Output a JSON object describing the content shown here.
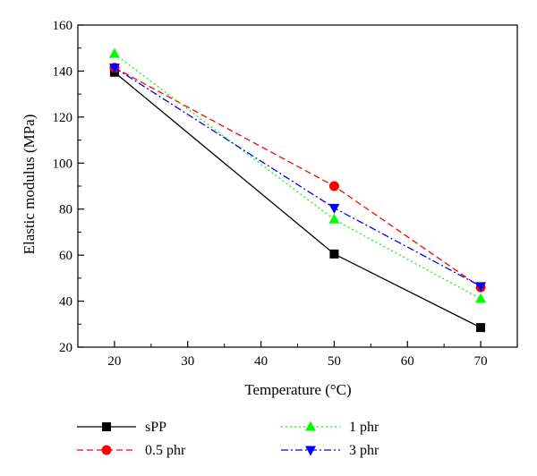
{
  "chart_data": {
    "type": "line",
    "xlabel": "Temperature (°C)",
    "ylabel": "Elastic modulus (MPa)",
    "xlim": [
      15,
      75
    ],
    "ylim": [
      20,
      160
    ],
    "xticks": [
      20,
      30,
      40,
      50,
      60,
      70
    ],
    "yticks": [
      20,
      40,
      60,
      80,
      100,
      120,
      140,
      160
    ],
    "grid": false,
    "legend_position": "bottom",
    "x": [
      20,
      50,
      70
    ],
    "series": [
      {
        "name": "sPP",
        "values": [
          139.5,
          60.5,
          28.5
        ],
        "color": "#000000",
        "marker": "square",
        "line_style": "solid"
      },
      {
        "name": "0.5 phr",
        "values": [
          141.5,
          90,
          46
        ],
        "color": "#ff0000",
        "marker": "circle",
        "line_style": "dashed"
      },
      {
        "name": "1 phr",
        "values": [
          147.5,
          75.5,
          41
        ],
        "color": "#00ff00",
        "marker": "triangle-up",
        "line_style": "dotted"
      },
      {
        "name": "3 phr",
        "values": [
          141.5,
          80.5,
          46.5
        ],
        "color": "#0000ff",
        "marker": "triangle-down",
        "line_style": "dash-dot"
      }
    ]
  }
}
